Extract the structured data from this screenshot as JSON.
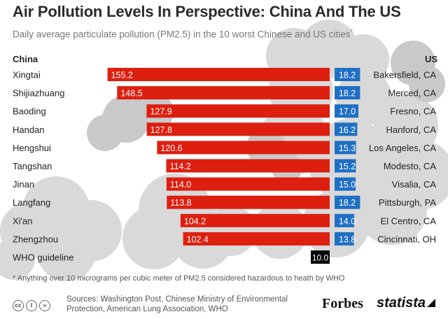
{
  "title": "Air Pollution Levels In Perspective: China And The US",
  "subtitle": "Daily average particulate pollution (PM2.5) in the 10 worst Chinese and US cities",
  "subtitle_mark": "*",
  "colors": {
    "china_bar": "#dd1f0f",
    "us_bar": "#1f6fc4",
    "who_bar": "#000000",
    "cloud": "#d9d9d9",
    "cloud_dark": "#cfcfcf"
  },
  "chart_data": {
    "type": "bar",
    "title": "Air Pollution Levels In Perspective: China And The US",
    "xlabel": "",
    "ylabel": "",
    "left_header": "China",
    "right_header": "US",
    "china": {
      "categories": [
        "Xingtai",
        "Shijiazhuang",
        "Baoding",
        "Handan",
        "Hengshui",
        "Tangshan",
        "Jinan",
        "Langfang",
        "Xi'an",
        "Zhengzhou"
      ],
      "values": [
        155.2,
        148.5,
        127.9,
        127.8,
        120.6,
        114.2,
        114.0,
        113.8,
        104.2,
        102.4
      ]
    },
    "us": {
      "categories": [
        "Bakersfield, CA",
        "Merced, CA",
        "Fresno, CA",
        "Hanford, CA",
        "Los Angeles, CA",
        "Modesto, CA",
        "Visalia, CA",
        "Pittsburgh, PA",
        "El Centro, CA",
        "Cincinnati, OH"
      ],
      "values": [
        18.2,
        18.2,
        17.0,
        16.2,
        15.3,
        15.2,
        15.0,
        18.2,
        14.0,
        13.8
      ]
    },
    "guideline": {
      "label": "WHO guideline",
      "value": 10.0,
      "value_label": "10.0"
    },
    "value_labels_china": [
      "155.2",
      "148.5",
      "127.9",
      "127.8",
      "120.6",
      "114.2",
      "114.0",
      "113.8",
      "104.2",
      "102.4"
    ],
    "value_labels_us": [
      "18.2",
      "18.2",
      "17.0",
      "16.2",
      "15.3",
      "15.2",
      "15.0",
      "18.2",
      "14.0",
      "13.8"
    ]
  },
  "footnote": "* Anything over 10 micrograms per cubic meter of PM2.5 considered hazardous to heath by WHO",
  "sources": "Sources: Washington Post, Chinese Ministry of Environmental Protection, American Lung Association, WHO",
  "brands": {
    "forbes": "Forbes",
    "statista": "statista"
  },
  "license_icons": [
    "cc",
    "i",
    "="
  ]
}
